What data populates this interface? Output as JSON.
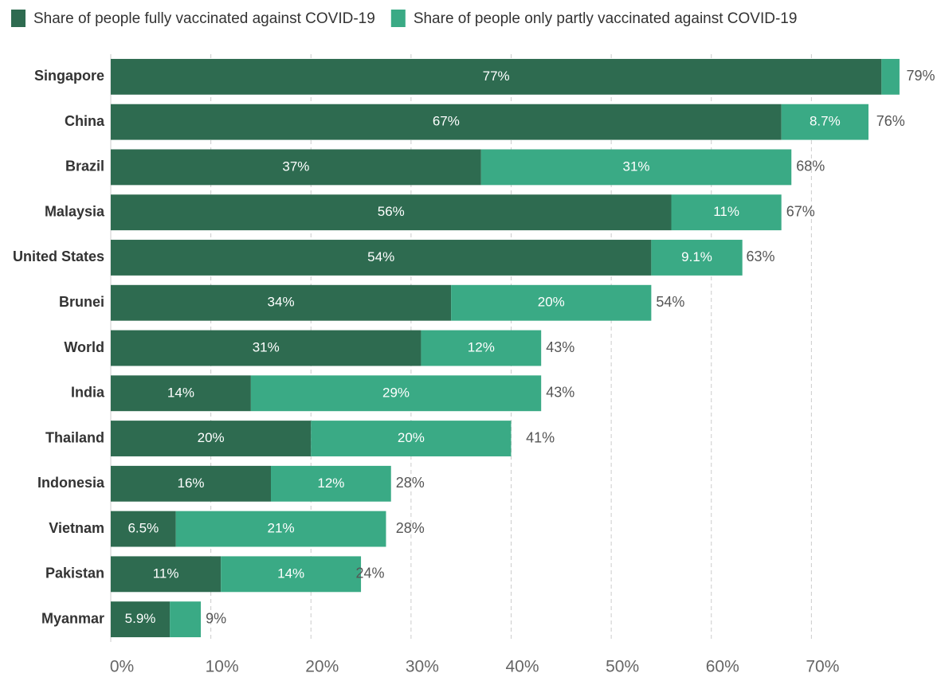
{
  "chart_data": {
    "type": "stacked_barh",
    "categories": [
      "Singapore",
      "China",
      "Brazil",
      "Malaysia",
      "United States",
      "Brunei",
      "World",
      "India",
      "Thailand",
      "Indonesia",
      "Vietnam",
      "Pakistan",
      "Myanmar"
    ],
    "series": [
      {
        "name": "Share of people fully vaccinated against COVID-19",
        "color": "#2e6b50",
        "values": [
          77,
          67,
          37,
          56,
          54,
          34,
          31,
          14,
          20,
          16,
          6.5,
          11,
          5.9
        ],
        "value_labels": [
          "77%",
          "67%",
          "37%",
          "56%",
          "54%",
          "34%",
          "31%",
          "14%",
          "20%",
          "16%",
          "6.5%",
          "11%",
          "5.9%"
        ]
      },
      {
        "name": "Share of people only partly vaccinated against COVID-19",
        "color": "#3aaa85",
        "values": [
          1.8,
          8.7,
          31,
          11,
          9.1,
          20,
          12,
          29,
          20,
          12,
          21,
          14,
          3.1
        ],
        "value_labels": [
          null,
          "8.7%",
          "31%",
          "11%",
          "9.1%",
          "20%",
          "12%",
          "29%",
          "20%",
          "12%",
          "21%",
          "14%",
          null
        ]
      }
    ],
    "totals": [
      79,
      76,
      68,
      67,
      63,
      54,
      43,
      43,
      41,
      28,
      28,
      24,
      9
    ],
    "total_labels": [
      "79%",
      "76%",
      "68%",
      "67%",
      "63%",
      "54%",
      "43%",
      "43%",
      "41%",
      "28%",
      "28%",
      "24%",
      "9%"
    ],
    "xlim": [
      0,
      80
    ],
    "xticks": [
      {
        "value": 0,
        "label": "0%"
      },
      {
        "value": 10,
        "label": "10%"
      },
      {
        "value": 20,
        "label": "20%"
      },
      {
        "value": 30,
        "label": "30%"
      },
      {
        "value": 40,
        "label": "40%"
      },
      {
        "value": 50,
        "label": "50%"
      },
      {
        "value": 60,
        "label": "60%"
      },
      {
        "value": 70,
        "label": "70%"
      }
    ],
    "grid": true,
    "legend": "top"
  }
}
